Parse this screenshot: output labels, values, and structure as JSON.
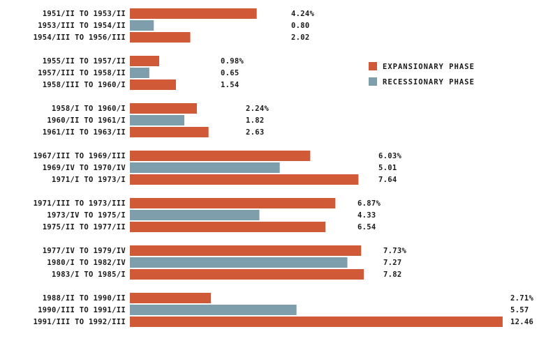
{
  "chart_data": {
    "type": "bar",
    "orientation": "horizontal",
    "colors": {
      "expansionary": "#d05a38",
      "recessionary": "#7f9eab"
    },
    "legend": {
      "placement": "right",
      "items": [
        {
          "key": "expansionary",
          "label": "EXPANSIONARY PHASE"
        },
        {
          "key": "recessionary",
          "label": "RECESSIONARY PHASE"
        }
      ]
    },
    "groups": [
      {
        "bars": [
          {
            "label": "1951/II TO 1953/II",
            "phase": "expansionary",
            "value": 4.24,
            "text": "4.24%"
          },
          {
            "label": "1953/III TO 1954/II",
            "phase": "recessionary",
            "value": 0.8,
            "text": "0.80"
          },
          {
            "label": "1954/III TO 1956/III",
            "phase": "expansionary",
            "value": 2.02,
            "text": "2.02"
          }
        ]
      },
      {
        "bars": [
          {
            "label": "1955/II TO 1957/II",
            "phase": "expansionary",
            "value": 0.98,
            "text": "0.98%"
          },
          {
            "label": "1957/III TO 1958/II",
            "phase": "recessionary",
            "value": 0.65,
            "text": "0.65"
          },
          {
            "label": "1958/III TO 1960/I",
            "phase": "expansionary",
            "value": 1.54,
            "text": "1.54"
          }
        ]
      },
      {
        "bars": [
          {
            "label": "1958/I TO 1960/I",
            "phase": "expansionary",
            "value": 2.24,
            "text": "2.24%"
          },
          {
            "label": "1960/II TO 1961/I",
            "phase": "recessionary",
            "value": 1.82,
            "text": "1.82"
          },
          {
            "label": "1961/II TO 1963/II",
            "phase": "expansionary",
            "value": 2.63,
            "text": "2.63"
          }
        ]
      },
      {
        "bars": [
          {
            "label": "1967/III TO 1969/III",
            "phase": "expansionary",
            "value": 6.03,
            "text": "6.03%"
          },
          {
            "label": "1969/IV TO 1970/IV",
            "phase": "recessionary",
            "value": 5.01,
            "text": "5.01"
          },
          {
            "label": "1971/I TO 1973/I",
            "phase": "expansionary",
            "value": 7.64,
            "text": "7.64"
          }
        ]
      },
      {
        "bars": [
          {
            "label": "1971/III TO 1973/III",
            "phase": "expansionary",
            "value": 6.87,
            "text": "6.87%"
          },
          {
            "label": "1973/IV TO 1975/I",
            "phase": "recessionary",
            "value": 4.33,
            "text": "4.33"
          },
          {
            "label": "1975/II TO 1977/II",
            "phase": "expansionary",
            "value": 6.54,
            "text": "6.54"
          }
        ]
      },
      {
        "bars": [
          {
            "label": "1977/IV TO 1979/IV",
            "phase": "expansionary",
            "value": 7.73,
            "text": "7.73%"
          },
          {
            "label": "1980/I TO 1982/IV",
            "phase": "recessionary",
            "value": 7.27,
            "text": "7.27"
          },
          {
            "label": "1983/I TO 1985/I",
            "phase": "expansionary",
            "value": 7.82,
            "text": "7.82"
          }
        ]
      },
      {
        "bars": [
          {
            "label": "1988/II TO 1990/II",
            "phase": "expansionary",
            "value": 2.71,
            "text": "2.71%"
          },
          {
            "label": "1990/III TO 1991/II",
            "phase": "recessionary",
            "value": 5.57,
            "text": "5.57"
          },
          {
            "label": "1991/III TO 1992/III",
            "phase": "expansionary",
            "value": 12.46,
            "text": "12.46"
          }
        ]
      }
    ]
  }
}
